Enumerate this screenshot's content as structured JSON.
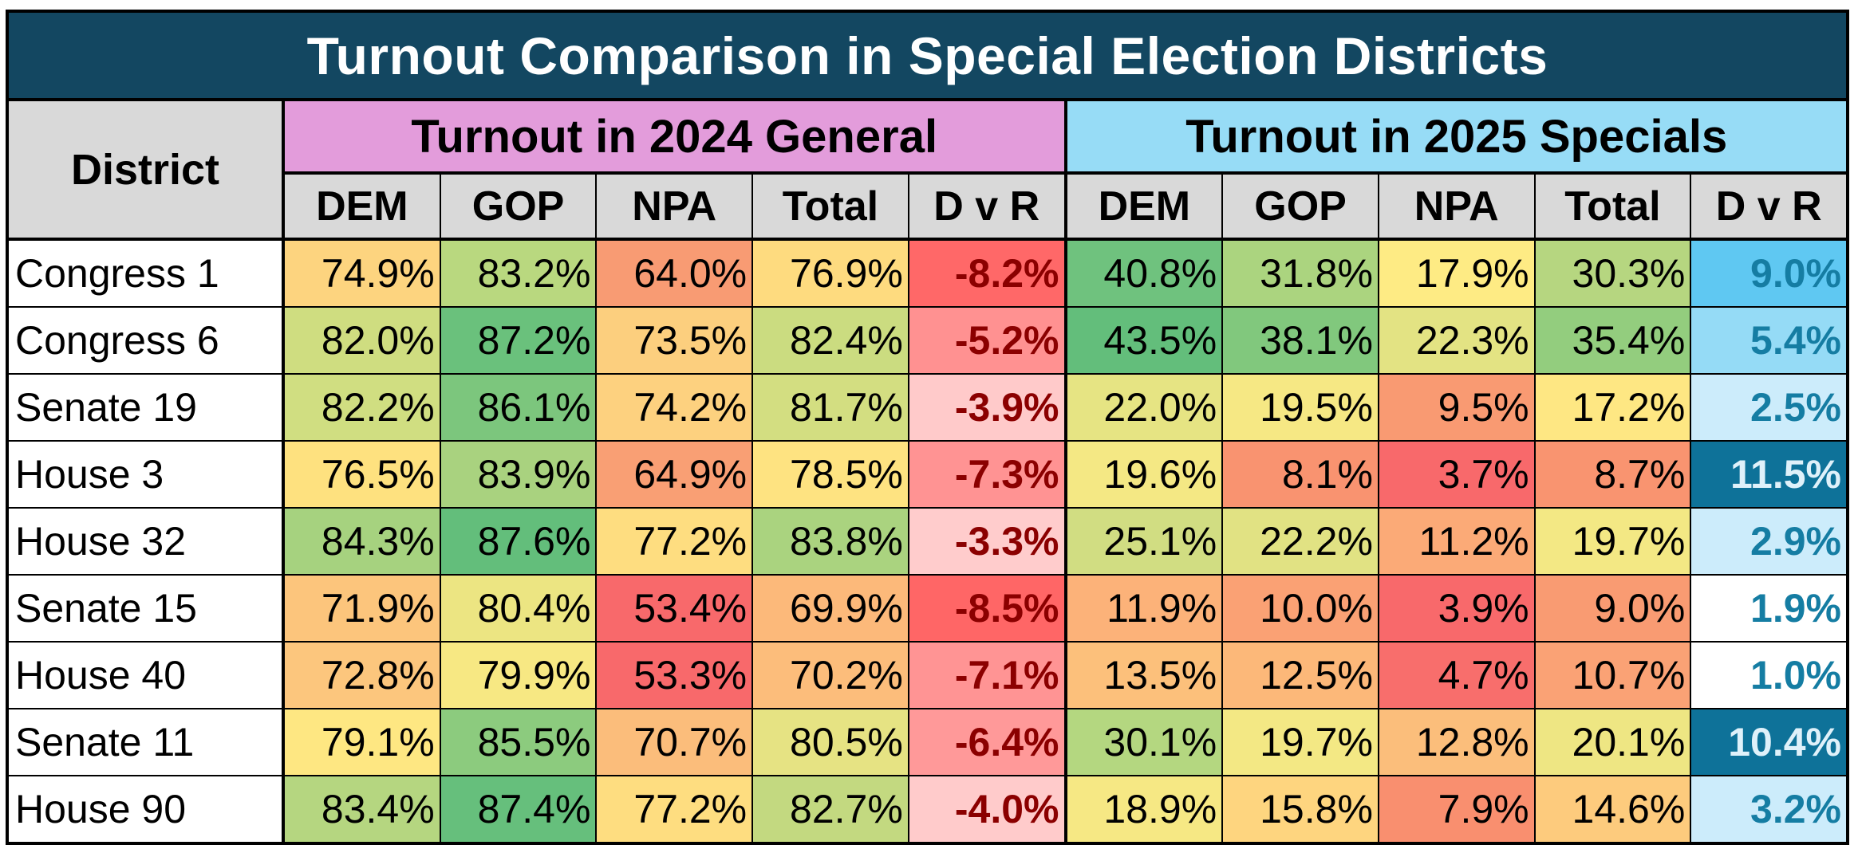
{
  "title": "Turnout Comparison in Special Election Districts",
  "district_header": "District",
  "groups": [
    {
      "label": "Turnout in 2024 General",
      "color": "#e39cdb",
      "columns": [
        "DEM",
        "GOP",
        "NPA",
        "Total",
        "D v R"
      ]
    },
    {
      "label": "Turnout in 2025 Specials",
      "color": "#97dcf6",
      "columns": [
        "DEM",
        "GOP",
        "NPA",
        "Total",
        "D v R"
      ]
    }
  ],
  "rows": [
    {
      "district": "Congress 1",
      "g2024": [
        {
          "v": "74.9%",
          "c": "#fdd47f"
        },
        {
          "v": "83.2%",
          "c": "#b9d87f"
        },
        {
          "v": "64.0%",
          "c": "#f89b73"
        },
        {
          "v": "76.9%",
          "c": "#fedb7f"
        },
        {
          "v": "-8.2%",
          "c": "#ff6868"
        }
      ],
      "g2025": [
        {
          "v": "40.8%",
          "c": "#6fc27e"
        },
        {
          "v": "31.8%",
          "c": "#abd47f"
        },
        {
          "v": "17.9%",
          "c": "#feeb84"
        },
        {
          "v": "30.3%",
          "c": "#b6d680"
        },
        {
          "v": "9.0%",
          "c": "#5fc8f2"
        }
      ]
    },
    {
      "district": "Congress 6",
      "g2024": [
        {
          "v": "82.0%",
          "c": "#cfdd80"
        },
        {
          "v": "87.2%",
          "c": "#6ac17c"
        },
        {
          "v": "73.5%",
          "c": "#fccf7e"
        },
        {
          "v": "82.4%",
          "c": "#cbdc80"
        },
        {
          "v": "-5.2%",
          "c": "#ff9191"
        }
      ],
      "g2025": [
        {
          "v": "43.5%",
          "c": "#63be7b"
        },
        {
          "v": "38.1%",
          "c": "#81c87d"
        },
        {
          "v": "22.3%",
          "c": "#e3e383"
        },
        {
          "v": "35.4%",
          "c": "#93cd7e"
        },
        {
          "v": "5.4%",
          "c": "#95dbf6"
        }
      ]
    },
    {
      "district": "Senate 19",
      "g2024": [
        {
          "v": "82.2%",
          "c": "#d0de81"
        },
        {
          "v": "86.1%",
          "c": "#7cc67d"
        },
        {
          "v": "74.2%",
          "c": "#fdd17f"
        },
        {
          "v": "81.7%",
          "c": "#d3de81"
        },
        {
          "v": "-3.9%",
          "c": "#ffcaca"
        }
      ],
      "g2025": [
        {
          "v": "22.0%",
          "c": "#e6e483"
        },
        {
          "v": "19.5%",
          "c": "#f6e884"
        },
        {
          "v": "9.5%",
          "c": "#f99a72"
        },
        {
          "v": "17.2%",
          "c": "#fee783"
        },
        {
          "v": "2.5%",
          "c": "#ccecfb"
        }
      ]
    },
    {
      "district": "House 3",
      "g2024": [
        {
          "v": "76.5%",
          "c": "#fee17f"
        },
        {
          "v": "83.9%",
          "c": "#a9d27f"
        },
        {
          "v": "64.9%",
          "c": "#f99f74"
        },
        {
          "v": "78.5%",
          "c": "#fee381"
        },
        {
          "v": "-7.3%",
          "c": "#ff9393"
        }
      ],
      "g2025": [
        {
          "v": "19.6%",
          "c": "#f4e884"
        },
        {
          "v": "8.1%",
          "c": "#f99370"
        },
        {
          "v": "3.7%",
          "c": "#f8696b"
        },
        {
          "v": "8.7%",
          "c": "#f99470"
        },
        {
          "v": "11.5%",
          "c": "#0e7299",
          "dark": true
        }
      ]
    },
    {
      "district": "House 32",
      "g2024": [
        {
          "v": "84.3%",
          "c": "#a6d27f"
        },
        {
          "v": "87.6%",
          "c": "#63be7b"
        },
        {
          "v": "77.2%",
          "c": "#fedd80"
        },
        {
          "v": "83.8%",
          "c": "#aad37f"
        },
        {
          "v": "-3.3%",
          "c": "#ffcccc"
        }
      ],
      "g2025": [
        {
          "v": "25.1%",
          "c": "#d1dd82"
        },
        {
          "v": "22.2%",
          "c": "#e1e283"
        },
        {
          "v": "11.2%",
          "c": "#fbaa77"
        },
        {
          "v": "19.7%",
          "c": "#f3e884"
        },
        {
          "v": "2.9%",
          "c": "#ccecfb"
        }
      ]
    },
    {
      "district": "Senate 15",
      "g2024": [
        {
          "v": "71.9%",
          "c": "#fcc57c"
        },
        {
          "v": "80.4%",
          "c": "#ece582"
        },
        {
          "v": "53.4%",
          "c": "#f8696b"
        },
        {
          "v": "69.9%",
          "c": "#fcb97a"
        },
        {
          "v": "-8.5%",
          "c": "#ff6666"
        }
      ],
      "g2025": [
        {
          "v": "11.9%",
          "c": "#fcb279"
        },
        {
          "v": "10.0%",
          "c": "#faa174"
        },
        {
          "v": "3.9%",
          "c": "#f8696b"
        },
        {
          "v": "9.0%",
          "c": "#f99b72"
        },
        {
          "v": "1.9%",
          "c": "#ffffff"
        }
      ]
    },
    {
      "district": "House 40",
      "g2024": [
        {
          "v": "72.8%",
          "c": "#fcc67d"
        },
        {
          "v": "79.9%",
          "c": "#f7e883"
        },
        {
          "v": "53.3%",
          "c": "#f8696b"
        },
        {
          "v": "70.2%",
          "c": "#fcbd7b"
        },
        {
          "v": "-7.1%",
          "c": "#ff9494"
        }
      ],
      "g2025": [
        {
          "v": "13.5%",
          "c": "#fcc07b"
        },
        {
          "v": "12.5%",
          "c": "#fcb879"
        },
        {
          "v": "4.7%",
          "c": "#f86e6c"
        },
        {
          "v": "10.7%",
          "c": "#faa275"
        },
        {
          "v": "1.0%",
          "c": "#ffffff"
        }
      ]
    },
    {
      "district": "Senate 11",
      "g2024": [
        {
          "v": "79.1%",
          "c": "#fee782"
        },
        {
          "v": "85.5%",
          "c": "#8ccb7e"
        },
        {
          "v": "70.7%",
          "c": "#fbbd7b"
        },
        {
          "v": "80.5%",
          "c": "#e6e383"
        },
        {
          "v": "-6.4%",
          "c": "#ff9999"
        }
      ],
      "g2025": [
        {
          "v": "30.1%",
          "c": "#b4d780"
        },
        {
          "v": "19.7%",
          "c": "#f3e884"
        },
        {
          "v": "12.8%",
          "c": "#fbbe7b"
        },
        {
          "v": "20.1%",
          "c": "#eee683"
        },
        {
          "v": "10.4%",
          "c": "#0e7299",
          "dark": true
        }
      ]
    },
    {
      "district": "House 90",
      "g2024": [
        {
          "v": "83.4%",
          "c": "#b5d680"
        },
        {
          "v": "87.4%",
          "c": "#66bf7c"
        },
        {
          "v": "77.2%",
          "c": "#fedd80"
        },
        {
          "v": "82.7%",
          "c": "#c3d980"
        },
        {
          "v": "-4.0%",
          "c": "#ffcbcb"
        }
      ],
      "g2025": [
        {
          "v": "18.9%",
          "c": "#f6e884"
        },
        {
          "v": "15.8%",
          "c": "#fed57f"
        },
        {
          "v": "7.9%",
          "c": "#f98f6f"
        },
        {
          "v": "14.6%",
          "c": "#fdcb7d"
        },
        {
          "v": "3.2%",
          "c": "#ccecfb"
        }
      ]
    }
  ]
}
